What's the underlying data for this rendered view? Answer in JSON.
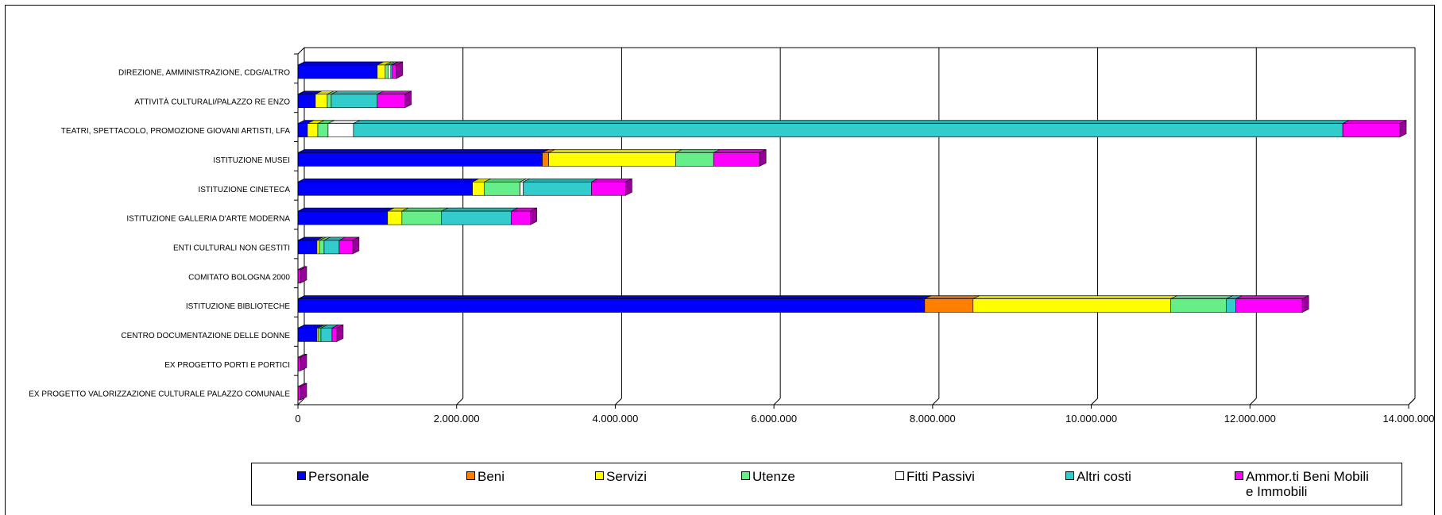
{
  "chart_data": {
    "type": "bar",
    "orientation": "horizontal",
    "stacked": true,
    "style": "3d",
    "title": "",
    "xlabel": "",
    "ylabel": "",
    "xlim": [
      0,
      14000000
    ],
    "x_ticks": [
      0,
      2000000,
      4000000,
      6000000,
      8000000,
      10000000,
      12000000,
      14000000
    ],
    "x_tick_labels": [
      "0",
      "2.000.000",
      "4.000.000",
      "6.000.000",
      "8.000.000",
      "10.000.000",
      "12.000.000",
      "14.000.000"
    ],
    "grid": true,
    "legend_position": "bottom",
    "categories": [
      "DIREZIONE, AMMINISTRAZIONE, CDG/ALTRO",
      "ATTIVITÀ CULTURALI/PALAZZO RE ENZO",
      "TEATRI, SPETTACOLO, PROMOZIONE GIOVANI ARTISTI, LFA",
      "ISTITUZIONE MUSEI",
      "ISTITUZIONE CINETECA",
      "ISTITUZIONE GALLERIA D'ARTE MODERNA",
      "ENTI CULTURALI NON GESTITI",
      "COMITATO BOLOGNA 2000",
      "ISTITUZIONE BIBLIOTECHE",
      "CENTRO DOCUMENTAZIONE DELLE DONNE",
      "EX PROGETTO PORTI E PORTICI",
      "EX PROGETTO VALORIZZAZIONE CULTURALE PALAZZO COMUNALE"
    ],
    "series": [
      {
        "name": "Personale",
        "color": "#0000ff",
        "values": [
          1000000,
          220000,
          120000,
          3080000,
          2200000,
          1130000,
          240000,
          0,
          7900000,
          240000,
          0,
          0
        ]
      },
      {
        "name": "Beni",
        "color": "#ff8000",
        "values": [
          0,
          0,
          0,
          80000,
          0,
          0,
          0,
          0,
          610000,
          0,
          0,
          0
        ]
      },
      {
        "name": "Servizi",
        "color": "#ffff00",
        "values": [
          100000,
          150000,
          130000,
          1600000,
          150000,
          180000,
          30000,
          0,
          2490000,
          20000,
          0,
          0
        ]
      },
      {
        "name": "Utenze",
        "color": "#66ee88",
        "values": [
          40000,
          50000,
          130000,
          480000,
          450000,
          500000,
          60000,
          0,
          700000,
          30000,
          0,
          0
        ]
      },
      {
        "name": "Fitti Passivi",
        "color": "#ffffff",
        "values": [
          30000,
          0,
          320000,
          0,
          40000,
          0,
          0,
          0,
          0,
          0,
          0,
          0
        ]
      },
      {
        "name": "Altri costi",
        "color": "#33cccc",
        "values": [
          20000,
          580000,
          12470000,
          0,
          860000,
          880000,
          190000,
          0,
          120000,
          140000,
          0,
          0
        ]
      },
      {
        "name": "Ammor.ti Beni Mobili e Immobili",
        "color": "#ff00ff",
        "values": [
          50000,
          350000,
          720000,
          580000,
          430000,
          240000,
          170000,
          30000,
          840000,
          60000,
          30000,
          30000
        ]
      }
    ]
  }
}
